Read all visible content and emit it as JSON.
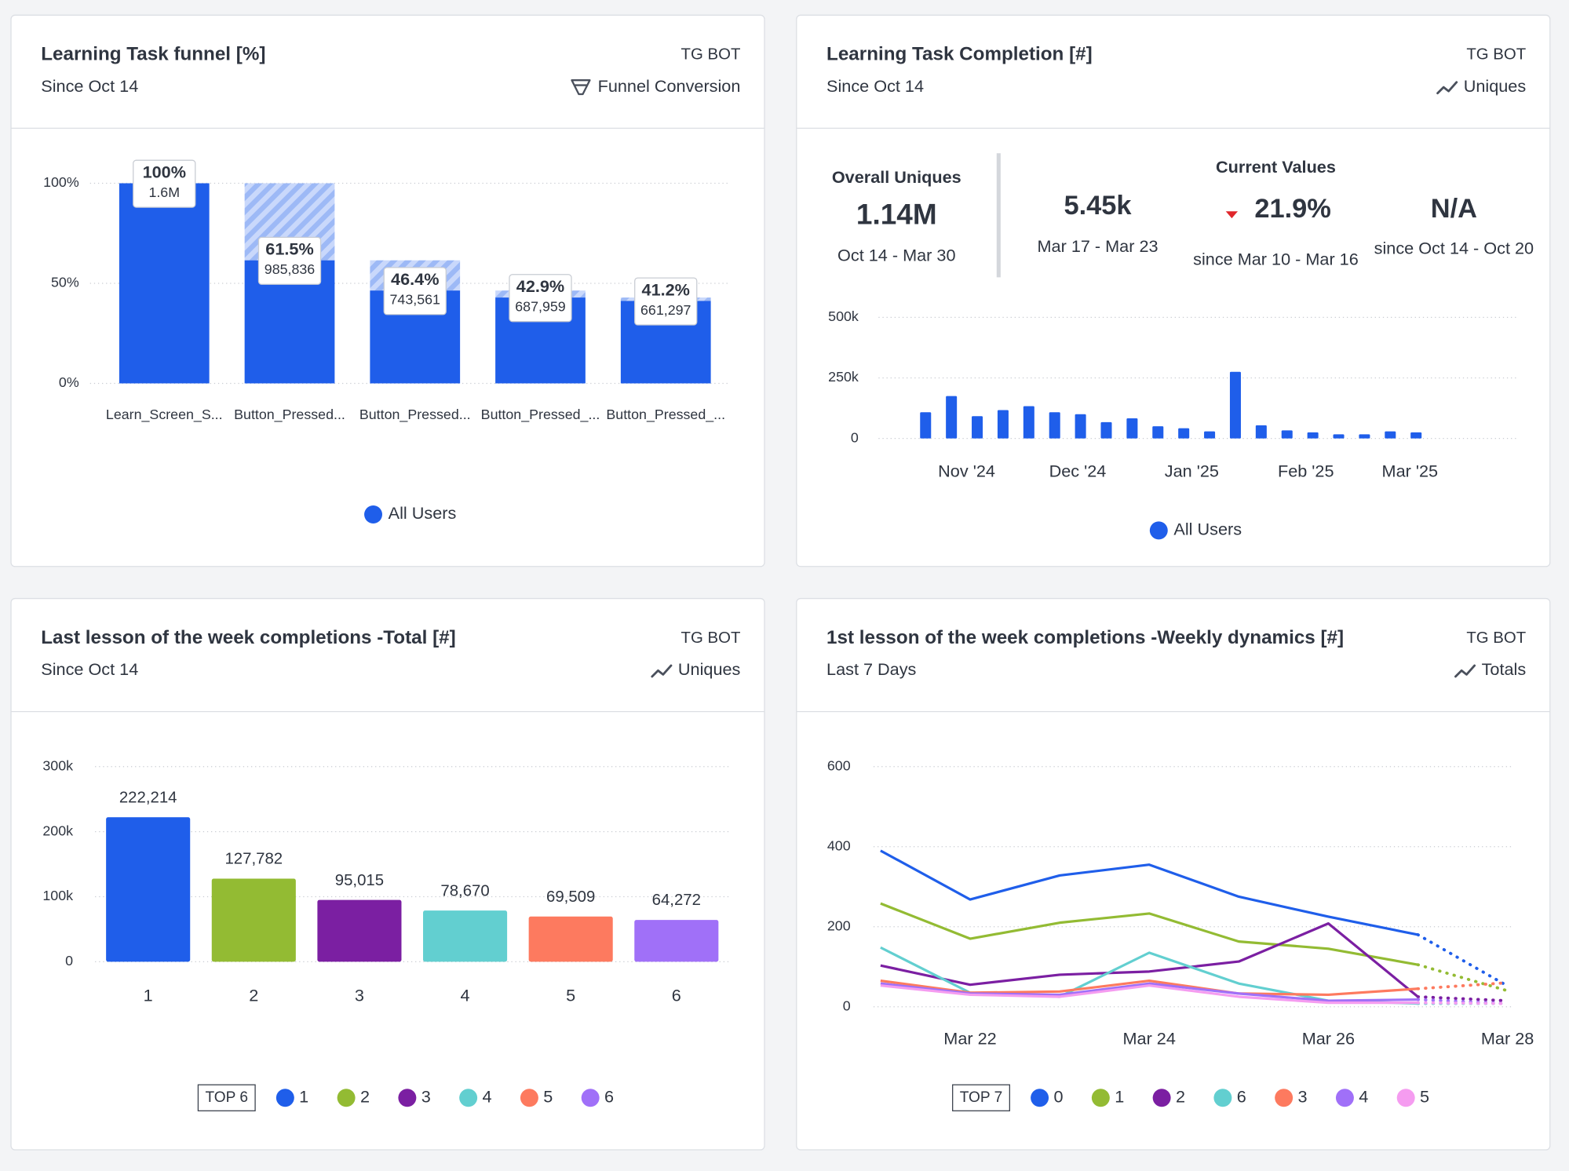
{
  "chart_data": [
    {
      "type": "funnel",
      "title": "Learning Task funnel [%]",
      "subtitle": "Since Oct 14",
      "source": "TG BOT",
      "metric": "Funnel Conversion",
      "categories": [
        "Learn_Screen_S...",
        "Button_Pressed...",
        "Button_Pressed...",
        "Button_Pressed_...",
        "Button_Pressed_..."
      ],
      "series": [
        {
          "name": "All Users",
          "color": "#1f5eea",
          "values": [
            100,
            61.5,
            46.4,
            42.9,
            41.2
          ],
          "value_labels": [
            "100%",
            "61.5%",
            "46.4%",
            "42.9%",
            "41.2%"
          ],
          "counts": [
            1600000,
            985836,
            743561,
            687959,
            661297
          ],
          "count_labels": [
            "1.6M",
            "985,836",
            "743,561",
            "687,959",
            "661,297"
          ]
        }
      ],
      "ylim": [
        0,
        100
      ],
      "yticks": [
        {
          "value": 0,
          "label": "0%"
        },
        {
          "value": 50,
          "label": "50%"
        },
        {
          "value": 100,
          "label": "100%"
        }
      ],
      "grid": true,
      "legend": "bottom"
    },
    {
      "type": "bar",
      "title": "Learning Task Completion [#]",
      "subtitle": "Since Oct 14",
      "source": "TG BOT",
      "metric": "Uniques",
      "kpis": {
        "overall": {
          "label": "Overall Uniques",
          "value": "1.14M",
          "period": "Oct 14 - Mar 30"
        },
        "current_title": "Current Values",
        "current": [
          {
            "value": "5.45k",
            "period": "Mar 17 - Mar 23"
          },
          {
            "value": "21.9%",
            "period": "since Mar 10 - Mar 16",
            "trend": "down"
          },
          {
            "value": "N/A",
            "period": "since Oct 14 - Oct 20"
          }
        ]
      },
      "categories": [
        null,
        null,
        null,
        null,
        null,
        null,
        null,
        null,
        null,
        null,
        null,
        null,
        null,
        null,
        null,
        null,
        null,
        null,
        null,
        null
      ],
      "series": [
        {
          "name": "All Users",
          "color": "#1f5eea",
          "values": [
            108000,
            175000,
            92000,
            117000,
            133000,
            108000,
            100000,
            67000,
            83000,
            50000,
            42000,
            29000,
            275000,
            54000,
            33000,
            25000,
            17000,
            17000,
            29000,
            25000
          ]
        }
      ],
      "ylim": [
        0,
        500000
      ],
      "yticks": [
        0,
        {
          "value": 250000,
          "label": "250k"
        },
        {
          "value": 500000,
          "label": "500k"
        }
      ],
      "xticks": [
        {
          "value": 1.59,
          "label": "Nov '24"
        },
        {
          "value": 5.89,
          "label": "Dec '24"
        },
        {
          "value": 10.31,
          "label": "Jan '25"
        },
        {
          "value": 14.73,
          "label": "Feb '25"
        },
        {
          "value": 18.76,
          "label": "Mar '25"
        }
      ],
      "grid": true,
      "legend": "bottom"
    },
    {
      "type": "bar",
      "title": "Last lesson of the week completions -Total [#]",
      "subtitle": "Since Oct 14",
      "source": "TG BOT",
      "metric": "Uniques",
      "categories": [
        "1",
        "2",
        "3",
        "4",
        "5",
        "6"
      ],
      "values": [
        222214,
        127782,
        95015,
        78670,
        69509,
        64272
      ],
      "value_labels": [
        "222,214",
        "127,782",
        "95,015",
        "78,670",
        "69,509",
        "64,272"
      ],
      "colors": [
        "#1f5eea",
        "#93bb33",
        "#7b1fa2",
        "#62cfd0",
        "#fd7a5f",
        "#a070f8"
      ],
      "ylim": [
        0,
        300000
      ],
      "yticks": [
        0,
        {
          "value": 100000,
          "label": "100k"
        },
        {
          "value": 200000,
          "label": "200k"
        },
        {
          "value": 300000,
          "label": "300k"
        }
      ],
      "grid": true,
      "legend_title": "TOP 6",
      "legend": "bottom"
    },
    {
      "type": "line",
      "title": "1st lesson of the week completions -Weekly dynamics [#]",
      "subtitle": "Last 7 Days",
      "source": "TG BOT",
      "metric": "Totals",
      "categories": [
        null,
        "Mar 22",
        null,
        "Mar 24",
        null,
        "Mar 26",
        null,
        "Mar 28"
      ],
      "series": [
        {
          "name": "0",
          "color": "#1f5eea",
          "values": [
            390,
            268,
            328,
            355,
            275,
            225,
            180,
            52
          ]
        },
        {
          "name": "1",
          "color": "#93bb33",
          "values": [
            258,
            170,
            210,
            233,
            163,
            145,
            105,
            40
          ]
        },
        {
          "name": "2",
          "color": "#7b1fa2",
          "values": [
            103,
            55,
            80,
            88,
            113,
            208,
            25,
            15
          ]
        },
        {
          "name": "6",
          "color": "#62cfd0",
          "values": [
            148,
            35,
            25,
            135,
            58,
            15,
            8,
            8
          ]
        },
        {
          "name": "3",
          "color": "#fd7a5f",
          "values": [
            65,
            35,
            38,
            65,
            33,
            30,
            45,
            60
          ]
        },
        {
          "name": "4",
          "color": "#a070f8",
          "values": [
            58,
            33,
            30,
            58,
            33,
            15,
            18,
            8
          ]
        },
        {
          "name": "5",
          "color": "#f59cf0",
          "values": [
            53,
            30,
            25,
            53,
            25,
            10,
            10,
            8
          ]
        }
      ],
      "ylim": [
        0,
        600
      ],
      "yticks": [
        0,
        200,
        400,
        600
      ],
      "grid": true,
      "legend_title": "TOP 7",
      "legend": "bottom",
      "last_point_partial": true
    }
  ]
}
